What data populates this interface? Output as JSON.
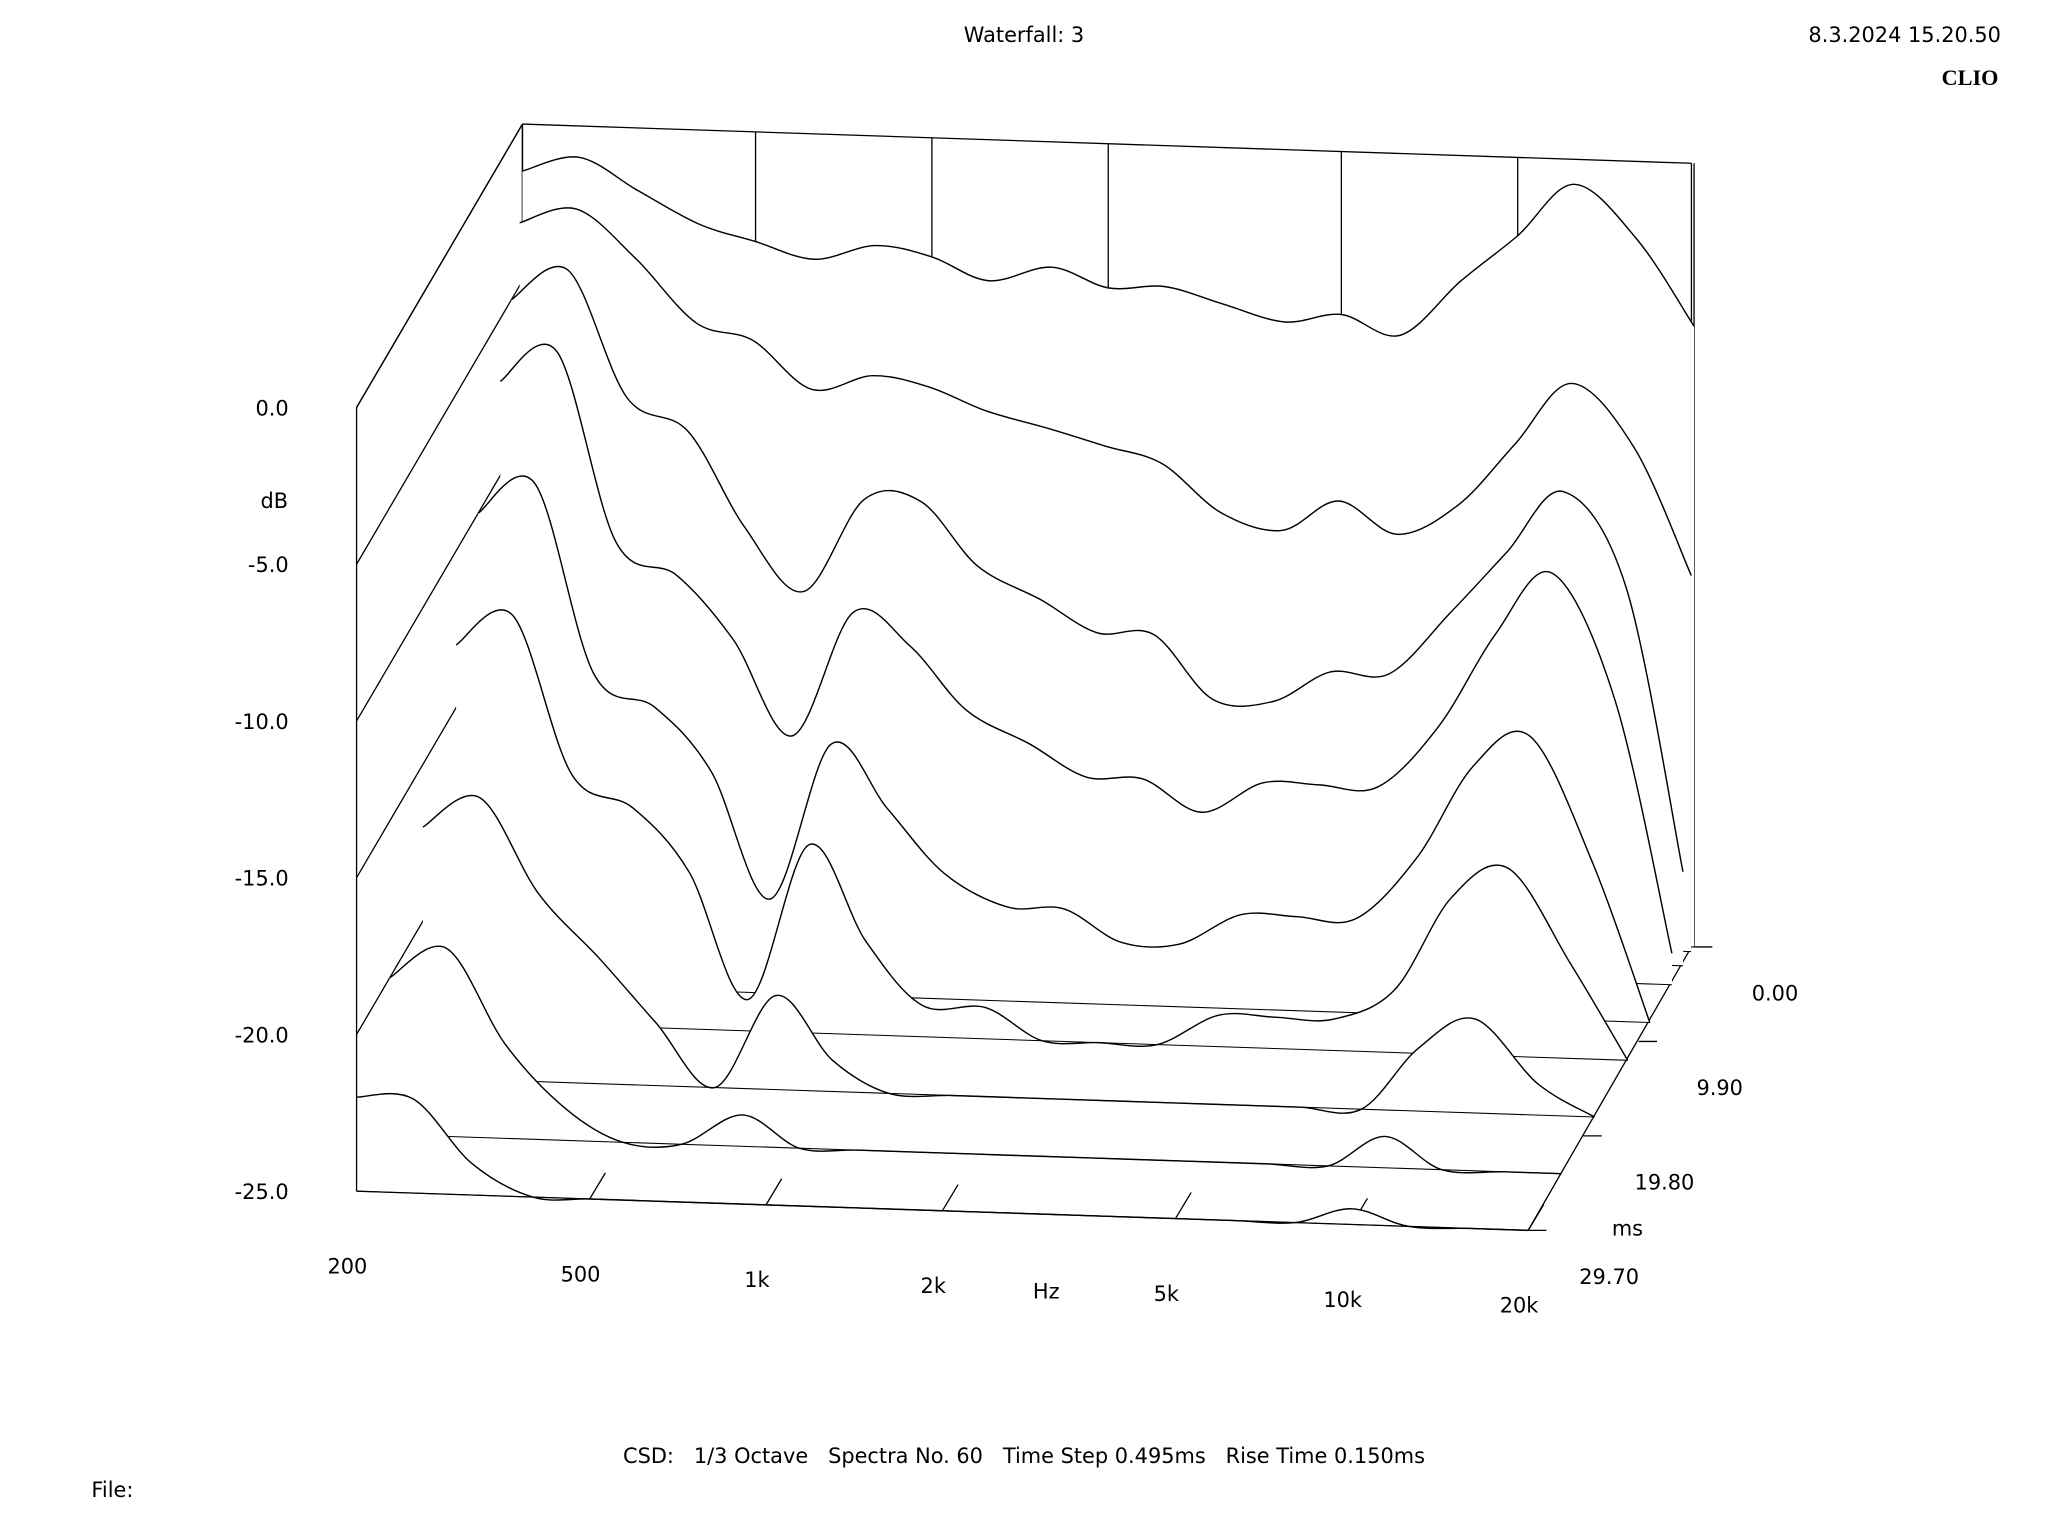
{
  "chart_data": {
    "type": "waterfall",
    "title": "Waterfall: 3",
    "timestamp": "8.3.2024 15.20.50",
    "brand": "CLIO",
    "footer": "CSD:   1/3 Octave   Spectra No. 60   Time Step 0.495ms   Rise Time 0.150ms",
    "file_label": "File:",
    "x_label": "Hz",
    "y_label": "dB",
    "z_label": "ms",
    "log_x": true,
    "xlim": [
      200,
      20000
    ],
    "xticks": [
      200,
      500,
      {
        "value": 1000,
        "label": "1k"
      },
      {
        "value": 2000,
        "label": "2k"
      },
      {
        "value": 5000,
        "label": "5k"
      },
      {
        "value": 10000,
        "label": "10k"
      },
      {
        "value": 20000,
        "label": "20k"
      }
    ],
    "ylim": [
      -25,
      0
    ],
    "yticks": [
      {
        "value": 0,
        "label": "0.0"
      },
      {
        "value": -5,
        "label": "-5.0"
      },
      {
        "value": -10,
        "label": "-10.0"
      },
      {
        "value": -15,
        "label": "-15.0"
      },
      {
        "value": -20,
        "label": "-20.0"
      },
      {
        "value": -25,
        "label": "-25.0"
      }
    ],
    "zlim": [
      0,
      29.7
    ],
    "zticks": [
      {
        "value": 0,
        "label": "0.00"
      },
      {
        "value": 9.9,
        "label": "9.90"
      },
      {
        "value": 19.8,
        "label": "19.80"
      },
      {
        "value": 29.7,
        "label": "29.70"
      }
    ],
    "color": "#000000",
    "x": [
      200,
      250,
      315,
      400,
      500,
      630,
      800,
      1000,
      1250,
      1600,
      2000,
      2500,
      3150,
      4000,
      5000,
      6300,
      8000,
      10000,
      12500,
      16000,
      20000
    ],
    "z": [
      0,
      0.495,
      1.98,
      3.96,
      7.92,
      11.88,
      17.82,
      23.76,
      29.7
    ],
    "series": [
      {
        "values": [
          -1.5,
          -1.0,
          -2.0,
          -3.0,
          -3.5,
          -4.0,
          -3.5,
          -3.8,
          -4.5,
          -4.0,
          -4.6,
          -4.5,
          -5.0,
          -5.5,
          -5.2,
          -5.8,
          -4.0,
          -2.5,
          -0.8,
          -2.5,
          -5.2
        ]
      },
      {
        "values": [
          -3,
          -2.5,
          -4,
          -6,
          -6.5,
          -8,
          -7.5,
          -7.8,
          -8.5,
          -9,
          -9.5,
          -10,
          -11.5,
          -12,
          -11,
          -12,
          -11,
          -9,
          -7,
          -9,
          -13
        ]
      },
      {
        "values": [
          -5,
          -4,
          -8,
          -9,
          -12,
          -14,
          -11,
          -11,
          -13,
          -14,
          -15,
          -15,
          -17,
          -17,
          -16,
          -16,
          -14,
          -12,
          -10,
          -13,
          -22
        ]
      },
      {
        "values": [
          -7,
          -6,
          -12,
          -13,
          -15,
          -18,
          -14,
          -15,
          -17,
          -18,
          -19,
          -19,
          -20,
          -19,
          -19,
          -19,
          -17,
          -14,
          -12,
          -16,
          -24
        ]
      },
      {
        "values": [
          -10,
          -9,
          -15,
          -16,
          -18,
          -22,
          -17,
          -19,
          -21,
          -22,
          -22,
          -23,
          -23,
          -22,
          -22,
          -22,
          -20,
          -17,
          -16,
          -20,
          -25
        ]
      },
      {
        "values": [
          -13,
          -12,
          -17,
          -18,
          -20,
          -24,
          -19,
          -22,
          -24,
          -24,
          -25,
          -25,
          -25,
          -24,
          -24,
          -24,
          -23,
          -20,
          -19,
          -22,
          -25
        ]
      },
      {
        "values": [
          -17,
          -16,
          -19,
          -21,
          -23,
          -25,
          -22,
          -24,
          -25,
          -25,
          -25,
          -25,
          -25,
          -25,
          -25,
          -25,
          -25,
          -23,
          -22,
          -24,
          -25
        ]
      },
      {
        "values": [
          -20,
          -19,
          -22,
          -24,
          -25,
          -25,
          -24,
          -25,
          -25,
          -25,
          -25,
          -25,
          -25,
          -25,
          -25,
          -25,
          -25,
          -24,
          -25,
          -25,
          -25
        ]
      },
      {
        "values": [
          -22,
          -22,
          -24,
          -25,
          -25,
          -25,
          -25,
          -25,
          -25,
          -25,
          -25,
          -25,
          -25,
          -25,
          -25,
          -25,
          -25,
          -24.5,
          -25,
          -25,
          -25
        ]
      }
    ]
  }
}
